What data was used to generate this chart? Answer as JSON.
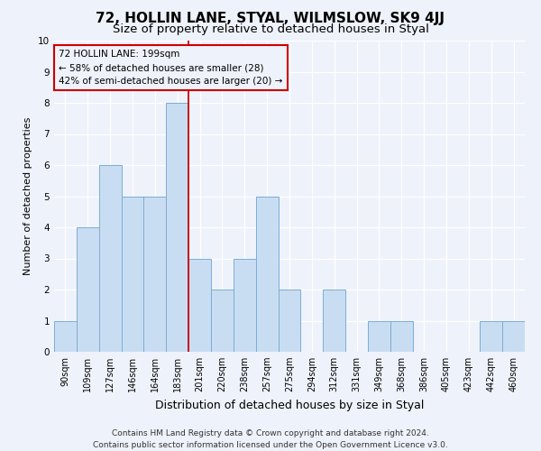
{
  "title": "72, HOLLIN LANE, STYAL, WILMSLOW, SK9 4JJ",
  "subtitle": "Size of property relative to detached houses in Styal",
  "xlabel": "Distribution of detached houses by size in Styal",
  "ylabel": "Number of detached properties",
  "footnote": "Contains HM Land Registry data © Crown copyright and database right 2024.\nContains public sector information licensed under the Open Government Licence v3.0.",
  "categories": [
    "90sqm",
    "109sqm",
    "127sqm",
    "146sqm",
    "164sqm",
    "183sqm",
    "201sqm",
    "220sqm",
    "238sqm",
    "257sqm",
    "275sqm",
    "294sqm",
    "312sqm",
    "331sqm",
    "349sqm",
    "368sqm",
    "386sqm",
    "405sqm",
    "423sqm",
    "442sqm",
    "460sqm"
  ],
  "values": [
    1,
    4,
    6,
    5,
    5,
    8,
    3,
    2,
    3,
    5,
    2,
    0,
    2,
    0,
    1,
    1,
    0,
    0,
    0,
    1,
    1
  ],
  "bar_color": "#c9ddf2",
  "bar_edge_color": "#7aadd4",
  "vline_color": "#cc0000",
  "vline_index": 6,
  "annotation_text": "72 HOLLIN LANE: 199sqm\n← 58% of detached houses are smaller (28)\n42% of semi-detached houses are larger (20) →",
  "annotation_box_color": "#cc0000",
  "ylim": [
    0,
    10
  ],
  "yticks": [
    0,
    1,
    2,
    3,
    4,
    5,
    6,
    7,
    8,
    9,
    10
  ],
  "background_color": "#eef2fa",
  "grid_color": "#ffffff",
  "title_fontsize": 11,
  "subtitle_fontsize": 9.5,
  "xlabel_fontsize": 9,
  "ylabel_fontsize": 8,
  "tick_fontsize": 7,
  "annotation_fontsize": 7.5,
  "footnote_fontsize": 6.5
}
